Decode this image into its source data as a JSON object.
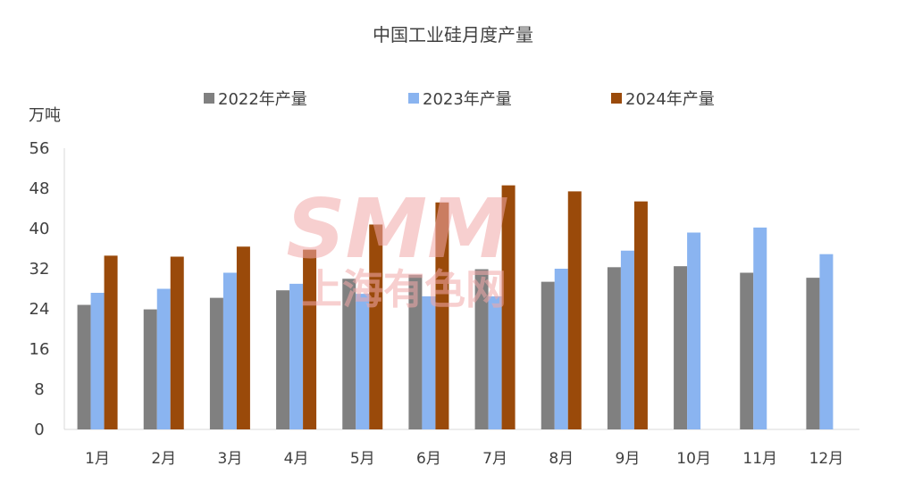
{
  "chart_data": {
    "type": "bar",
    "title": "中国工业硅月度产量",
    "y_unit": "万吨",
    "ylim": [
      0,
      56
    ],
    "y_ticks": [
      "0",
      "8",
      "16",
      "24",
      "32",
      "40",
      "48",
      "56"
    ],
    "grid": false,
    "legend_position": "top",
    "categories": [
      "1月",
      "2月",
      "3月",
      "4月",
      "5月",
      "6月",
      "7月",
      "8月",
      "9月",
      "10月",
      "11月",
      "12月"
    ],
    "series": [
      {
        "name": "2022年产量",
        "color": "#808080",
        "values": [
          24.8,
          23.9,
          26.2,
          27.7,
          30.0,
          30.8,
          31.9,
          29.4,
          32.3,
          32.5,
          31.2,
          30.2
        ]
      },
      {
        "name": "2023年产量",
        "color": "#8ab4f0",
        "values": [
          27.2,
          28.0,
          31.2,
          29.0,
          27.0,
          26.5,
          26.5,
          32.0,
          35.6,
          39.2,
          40.2,
          34.9
        ]
      },
      {
        "name": "2024年产量",
        "color": "#9a4a0a",
        "values": [
          34.6,
          34.4,
          36.4,
          35.8,
          40.8,
          45.2,
          48.6,
          47.4,
          45.4,
          null,
          null,
          null
        ]
      }
    ]
  },
  "watermark": {
    "logo_text": "SMM",
    "sub_text": "上海有色网",
    "color": "#f2a8a8"
  }
}
